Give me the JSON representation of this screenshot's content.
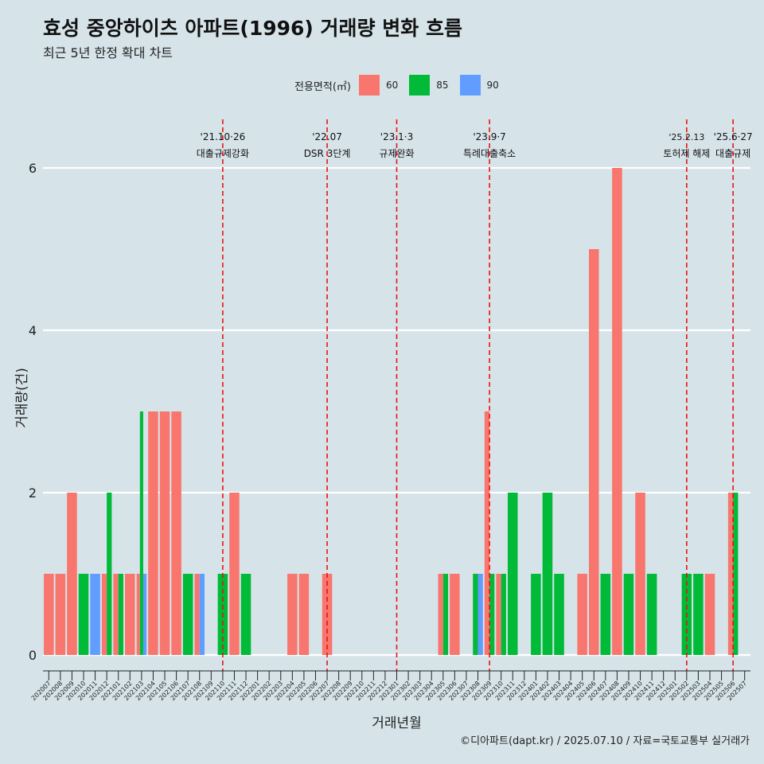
{
  "header": {
    "title": "효성 중앙하이츠 아파트(1996) 거래량 변화 흐름",
    "subtitle": "최근 5년 한정 확대 차트"
  },
  "legend": {
    "title": "전용면적(㎡)",
    "items": [
      {
        "label": "60",
        "color": "#f8766d"
      },
      {
        "label": "85",
        "color": "#00ba38"
      },
      {
        "label": "90",
        "color": "#619cff"
      }
    ]
  },
  "caption": "©디아파트(dapt.kr) / 2025.07.10 / 자료=국토교통부 실거래가",
  "chart_data": {
    "type": "bar",
    "xlabel": "거래년월",
    "ylabel": "거래량(건)",
    "ylim": [
      0,
      6.3
    ],
    "yticks": [
      0,
      2,
      4,
      6
    ],
    "grid": true,
    "legend_position": "top",
    "categories": [
      "202007",
      "202008",
      "202009",
      "202010",
      "202011",
      "202012",
      "202101",
      "202102",
      "202103",
      "202104",
      "202105",
      "202106",
      "202107",
      "202108",
      "202109",
      "202110",
      "202111",
      "202112",
      "202201",
      "202202",
      "202203",
      "202204",
      "202205",
      "202206",
      "202207",
      "202208",
      "202209",
      "202210",
      "202211",
      "202212",
      "202301",
      "202302",
      "202303",
      "202304",
      "202305",
      "202306",
      "202307",
      "202308",
      "202309",
      "202310",
      "202311",
      "202312",
      "202401",
      "202402",
      "202403",
      "202404",
      "202405",
      "202406",
      "202407",
      "202408",
      "202409",
      "202410",
      "202411",
      "202412",
      "202501",
      "202502",
      "202503",
      "202504",
      "202505",
      "202506",
      "202507"
    ],
    "series": [
      {
        "name": "60",
        "color": "#f8766d",
        "values": [
          1,
          1,
          2,
          0,
          0,
          1,
          1,
          1,
          1,
          3,
          3,
          3,
          0,
          1,
          0,
          0,
          2,
          0,
          0,
          0,
          0,
          1,
          1,
          0,
          1,
          0,
          0,
          0,
          0,
          0,
          0,
          0,
          0,
          0,
          1,
          1,
          0,
          0,
          3,
          1,
          0,
          0,
          0,
          0,
          0,
          0,
          1,
          5,
          0,
          6,
          0,
          2,
          0,
          0,
          0,
          0,
          0,
          1,
          0,
          2,
          0
        ]
      },
      {
        "name": "85",
        "color": "#00ba38",
        "values": [
          0,
          0,
          0,
          1,
          0,
          2,
          1,
          0,
          3,
          0,
          0,
          0,
          1,
          0,
          0,
          1,
          0,
          1,
          0,
          0,
          0,
          0,
          0,
          0,
          0,
          0,
          0,
          0,
          0,
          0,
          0,
          0,
          0,
          0,
          1,
          0,
          0,
          1,
          1,
          1,
          2,
          0,
          1,
          2,
          1,
          0,
          0,
          0,
          1,
          0,
          1,
          0,
          1,
          0,
          0,
          1,
          1,
          0,
          0,
          2,
          0
        ]
      },
      {
        "name": "90",
        "color": "#619cff",
        "values": [
          0,
          0,
          0,
          0,
          1,
          0,
          0,
          0,
          1,
          0,
          0,
          0,
          0,
          1,
          0,
          0,
          0,
          0,
          0,
          0,
          0,
          0,
          0,
          0,
          0,
          0,
          0,
          0,
          0,
          0,
          0,
          0,
          0,
          0,
          0,
          0,
          0,
          1,
          0,
          0,
          0,
          0,
          0,
          0,
          0,
          0,
          0,
          0,
          0,
          0,
          0,
          0,
          0,
          0,
          0,
          0,
          0,
          0,
          0,
          0,
          0
        ]
      }
    ],
    "events": [
      {
        "at": "202110",
        "date": "'21.10·26",
        "label": "대출규제강화"
      },
      {
        "at": "202207",
        "date": "'22.07",
        "label": "DSR 3단계"
      },
      {
        "at": "202301",
        "date": "'23.1·3",
        "label": "규제완화"
      },
      {
        "at": "202309",
        "date": "'23.9·7",
        "label": "특례대출축소"
      },
      {
        "at": "202502",
        "date": "'25.2.13",
        "label": "토허제 해제"
      },
      {
        "at": "202506",
        "date": "'25.6·27",
        "label": "대출규제"
      }
    ]
  }
}
